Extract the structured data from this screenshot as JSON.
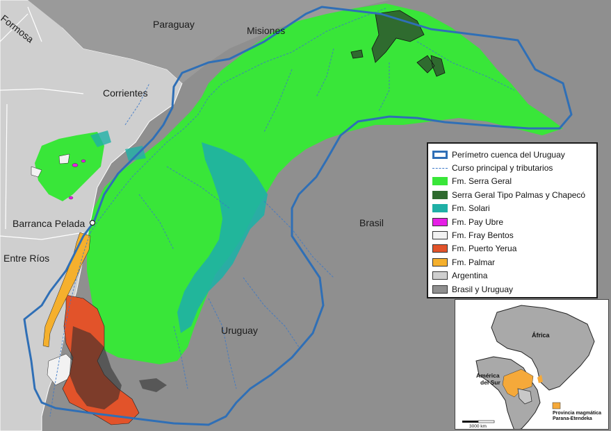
{
  "map": {
    "regions": [
      {
        "name": "Formosa"
      },
      {
        "name": "Paraguay"
      },
      {
        "name": "Misiones"
      },
      {
        "name": "Corrientes"
      },
      {
        "name": "Barranca Pelada"
      },
      {
        "name": "Entre Ríos"
      },
      {
        "name": "Brasil"
      },
      {
        "name": "Uruguay"
      }
    ]
  },
  "legend": {
    "items": [
      {
        "label": "Perímetro cuenca del Uruguay",
        "color": "#2f6fb6",
        "kind": "outline"
      },
      {
        "label": "Curso principal y tributarios",
        "color": "#3b78c8",
        "kind": "dashed"
      },
      {
        "label": "Fm. Serra Geral",
        "color": "#39e639",
        "kind": "fill"
      },
      {
        "label": "Serra Geral Tipo Palmas y Chapecó",
        "color": "#2f6b2f",
        "kind": "fill"
      },
      {
        "label": "Fm. Solari",
        "color": "#1fb0a6",
        "kind": "fill"
      },
      {
        "label": "Fm. Pay Ubre",
        "color": "#e61fe6",
        "kind": "fill"
      },
      {
        "label": "Fm. Fray Bentos",
        "color": "#f2f2f2",
        "kind": "fill"
      },
      {
        "label": "Fm. Puerto Yerua",
        "color": "#e2532a",
        "kind": "fill"
      },
      {
        "label": "Fm. Palmar",
        "color": "#f5b02d",
        "kind": "fill"
      },
      {
        "label": "Argentina",
        "color": "#cfcfcf",
        "kind": "fill"
      },
      {
        "label": "Brasil y Uruguay",
        "color": "#8f8f8f",
        "kind": "fill"
      }
    ]
  },
  "inset": {
    "africa_label": "África",
    "south_america_label_1": "América",
    "south_america_label_2": "del Sur",
    "province_label_1": "Provincia magmática",
    "province_label_2": "Parana-Etendeka",
    "province_color": "#f5a93a",
    "scale_label": "3000 km"
  }
}
